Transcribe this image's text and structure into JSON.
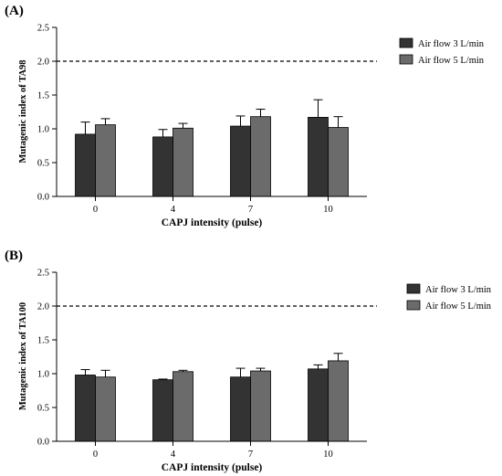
{
  "colors": {
    "series_a": "#333333",
    "series_b": "#6b6b6b",
    "axis": "#000000",
    "reference": "#000000"
  },
  "chart_data": [
    {
      "type": "bar",
      "panel_label": "(A)",
      "xlabel": "CAPJ intensity (pulse)",
      "ylabel": "Mutagenic index of TA98",
      "categories": [
        "0",
        "4",
        "7",
        "10"
      ],
      "ylim": [
        0,
        2.5
      ],
      "yticks": [
        "0.0",
        "0.5",
        "1.0",
        "1.5",
        "2.0",
        "2.5"
      ],
      "reference_line": 2.0,
      "legend_position": "top-right",
      "series": [
        {
          "name": "Air flow 3 L/min",
          "values": [
            0.92,
            0.88,
            1.04,
            1.17
          ],
          "errors": [
            0.18,
            0.11,
            0.15,
            0.26
          ]
        },
        {
          "name": "Air flow 5 L/min",
          "values": [
            1.06,
            1.01,
            1.18,
            1.02
          ],
          "errors": [
            0.09,
            0.07,
            0.11,
            0.16
          ]
        }
      ]
    },
    {
      "type": "bar",
      "panel_label": "(B)",
      "xlabel": "CAPJ intensity (pulse)",
      "ylabel": "Mutagenic index of TA100",
      "categories": [
        "0",
        "4",
        "7",
        "10"
      ],
      "ylim": [
        0,
        2.5
      ],
      "yticks": [
        "0.0",
        "0.5",
        "1.0",
        "1.5",
        "2.0",
        "2.5"
      ],
      "reference_line": 2.0,
      "legend_position": "top-right",
      "series": [
        {
          "name": "Air flow 3 L/min",
          "values": [
            0.98,
            0.91,
            0.95,
            1.07
          ],
          "errors": [
            0.08,
            0.01,
            0.13,
            0.06
          ]
        },
        {
          "name": "Air flow 5 L/min",
          "values": [
            0.95,
            1.03,
            1.04,
            1.19
          ],
          "errors": [
            0.1,
            0.02,
            0.04,
            0.11
          ]
        }
      ]
    }
  ]
}
